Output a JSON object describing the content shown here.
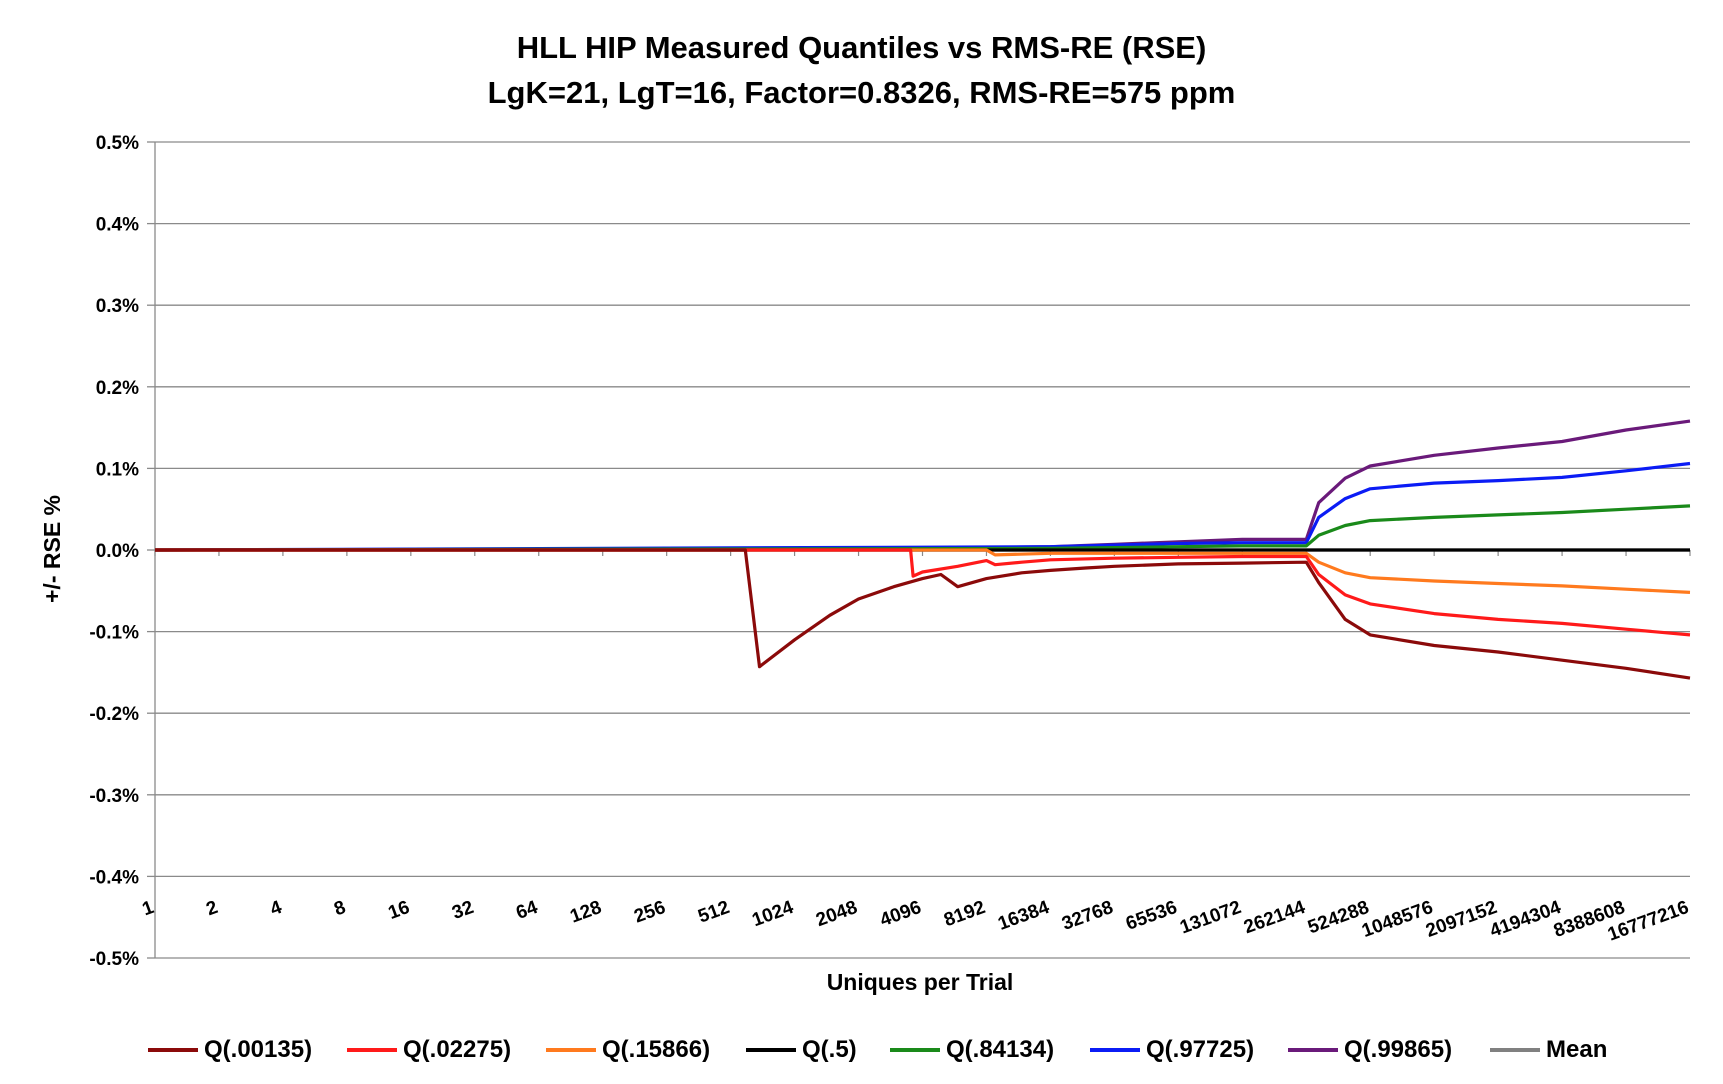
{
  "chart_data": {
    "type": "line",
    "title": "HLL HIP Measured Quantiles vs RMS-RE (RSE)",
    "subtitle": "LgK=21, LgT=16, Factor=0.8326, RMS-RE=575 ppm",
    "xlabel": "Uniques per Trial",
    "ylabel": "+/-  RSE %",
    "x_scale": "log2",
    "x_ticks": [
      "1",
      "2",
      "4",
      "8",
      "16",
      "32",
      "64",
      "128",
      "256",
      "512",
      "1024",
      "2048",
      "4096",
      "8192",
      "16384",
      "32768",
      "65536",
      "131072",
      "262144",
      "524288",
      "1048576",
      "2097152",
      "4194304",
      "8388608",
      "16777216"
    ],
    "y_ticks": [
      "0.5%",
      "0.4%",
      "0.3%",
      "0.2%",
      "0.1%",
      "0.0%",
      "-0.1%",
      "-0.2%",
      "-0.3%",
      "-0.4%",
      "-0.5%"
    ],
    "ylim": [
      -0.5,
      0.5
    ],
    "grid": "horizontal",
    "legend_position": "bottom",
    "series": [
      {
        "name": "Q(.00135)",
        "color": "#8b0a0a",
        "x": [
          1,
          512,
          600,
          700,
          1024,
          1500,
          2048,
          3000,
          4096,
          5000,
          6000,
          8192,
          12000,
          16384,
          24000,
          32768,
          65536,
          131072,
          262144,
          300000,
          400000,
          524288,
          1048576,
          2097152,
          4194304,
          8388608,
          16777216
        ],
        "y": [
          0,
          0,
          0,
          -0.143,
          -0.11,
          -0.08,
          -0.06,
          -0.045,
          -0.035,
          -0.03,
          -0.045,
          -0.035,
          -0.028,
          -0.025,
          -0.022,
          -0.02,
          -0.017,
          -0.016,
          -0.015,
          -0.04,
          -0.085,
          -0.104,
          -0.117,
          -0.125,
          -0.135,
          -0.145,
          -0.157
        ]
      },
      {
        "name": "Q(.02275)",
        "color": "#ff1a1a",
        "x": [
          1,
          3600,
          3700,
          4096,
          6000,
          8192,
          9000,
          12000,
          16384,
          32768,
          65536,
          131072,
          262144,
          300000,
          400000,
          524288,
          1048576,
          2097152,
          4194304,
          8388608,
          16777216
        ],
        "y": [
          0,
          0,
          -0.032,
          -0.027,
          -0.02,
          -0.013,
          -0.018,
          -0.015,
          -0.012,
          -0.01,
          -0.009,
          -0.008,
          -0.008,
          -0.03,
          -0.055,
          -0.066,
          -0.078,
          -0.085,
          -0.09,
          -0.097,
          -0.104
        ]
      },
      {
        "name": "Q(.15866)",
        "color": "#ff7a1e",
        "x": [
          1,
          8192,
          9000,
          16384,
          32768,
          65536,
          131072,
          262144,
          300000,
          400000,
          524288,
          1048576,
          2097152,
          4194304,
          8388608,
          16777216
        ],
        "y": [
          0,
          0,
          -0.006,
          -0.004,
          -0.004,
          -0.004,
          -0.004,
          -0.004,
          -0.015,
          -0.028,
          -0.034,
          -0.038,
          -0.041,
          -0.044,
          -0.048,
          -0.052
        ]
      },
      {
        "name": "Q(.5)",
        "color": "#000000",
        "x": [
          1,
          16777216
        ],
        "y": [
          0,
          0
        ]
      },
      {
        "name": "Q(.84134)",
        "color": "#1a8a1a",
        "x": [
          1,
          16384,
          32768,
          65536,
          131072,
          262144,
          300000,
          400000,
          524288,
          1048576,
          2097152,
          4194304,
          8388608,
          16777216
        ],
        "y": [
          0,
          0.002,
          0.003,
          0.004,
          0.005,
          0.005,
          0.018,
          0.03,
          0.036,
          0.04,
          0.043,
          0.046,
          0.05,
          0.054
        ]
      },
      {
        "name": "Q(.97725)",
        "color": "#0b1cf5",
        "x": [
          1,
          16384,
          32768,
          65536,
          131072,
          262144,
          300000,
          400000,
          524288,
          1048576,
          2097152,
          4194304,
          8388608,
          16777216
        ],
        "y": [
          0,
          0.004,
          0.006,
          0.008,
          0.009,
          0.009,
          0.04,
          0.063,
          0.075,
          0.082,
          0.085,
          0.089,
          0.097,
          0.106
        ]
      },
      {
        "name": "Q(.99865)",
        "color": "#6a1a7a",
        "x": [
          1,
          4096,
          16384,
          32768,
          65536,
          131072,
          262144,
          300000,
          400000,
          524288,
          1048576,
          2097152,
          4194304,
          8388608,
          16777216
        ],
        "y": [
          0,
          0.002,
          0.004,
          0.007,
          0.01,
          0.013,
          0.013,
          0.058,
          0.088,
          0.103,
          0.116,
          0.125,
          0.133,
          0.147,
          0.158
        ]
      },
      {
        "name": "Mean",
        "color": "#808080",
        "x": [
          1,
          16777216
        ],
        "y": [
          0,
          0
        ]
      }
    ]
  }
}
